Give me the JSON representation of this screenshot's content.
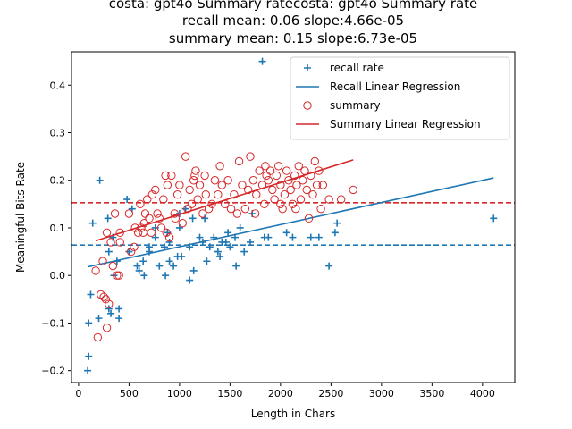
{
  "chart_data": {
    "type": "scatter",
    "title_lines": [
      "costa: gpt4o Summary ratecosta: gpt4o Summary rate",
      "recall mean: 0.06 slope:4.66e-05",
      "summary mean: 0.15 slope:6.73e-05"
    ],
    "xlabel": "Length in Chars",
    "ylabel": "Meaningful Bits Rate",
    "xlim": [
      -70,
      4320
    ],
    "ylim": [
      -0.225,
      0.47
    ],
    "xticks": [
      0,
      500,
      1000,
      1500,
      2000,
      2500,
      3000,
      3500,
      4000
    ],
    "yticks": [
      -0.2,
      -0.1,
      0.0,
      0.1,
      0.2,
      0.3,
      0.4
    ],
    "grid": false,
    "legend": {
      "placement": "top-right",
      "entries": [
        {
          "label": "recall rate",
          "marker": "plus",
          "color": "#1f77b4"
        },
        {
          "label": "Recall Linear Regression",
          "marker": "line",
          "color": "#1f77b4"
        },
        {
          "label": "summary",
          "marker": "circle",
          "color": "#d62728"
        },
        {
          "label": "Summary Linear Regression",
          "marker": "line",
          "color": "#d62728"
        }
      ]
    },
    "colors": {
      "recall": "#1f77b4",
      "summary": "#d62728"
    },
    "series": [
      {
        "name": "recall rate",
        "kind": "scatter",
        "marker": "plus",
        "color": "#1f77b4",
        "points": [
          [
            1820,
            0.45
          ],
          [
            210,
            0.2
          ],
          [
            140,
            0.11
          ],
          [
            290,
            0.12
          ],
          [
            100,
            -0.1
          ],
          [
            120,
            -0.04
          ],
          [
            100,
            -0.17
          ],
          [
            90,
            -0.2
          ],
          [
            200,
            -0.09
          ],
          [
            300,
            -0.07
          ],
          [
            320,
            -0.08
          ],
          [
            400,
            -0.07
          ],
          [
            400,
            -0.09
          ],
          [
            350,
            0.0
          ],
          [
            380,
            0.03
          ],
          [
            300,
            0.05
          ],
          [
            340,
            0.08
          ],
          [
            480,
            0.16
          ],
          [
            530,
            0.14
          ],
          [
            500,
            0.05
          ],
          [
            580,
            0.02
          ],
          [
            600,
            0.01
          ],
          [
            640,
            0.03
          ],
          [
            650,
            0.0
          ],
          [
            700,
            0.06
          ],
          [
            760,
            0.1
          ],
          [
            800,
            0.02
          ],
          [
            850,
            0.06
          ],
          [
            900,
            0.07
          ],
          [
            860,
            0.0
          ],
          [
            900,
            0.03
          ],
          [
            940,
            0.02
          ],
          [
            980,
            0.04
          ],
          [
            1000,
            0.1
          ],
          [
            1020,
            0.04
          ],
          [
            1100,
            0.06
          ],
          [
            1100,
            -0.01
          ],
          [
            1140,
            0.01
          ],
          [
            1200,
            0.08
          ],
          [
            1230,
            0.07
          ],
          [
            1270,
            0.03
          ],
          [
            1300,
            0.06
          ],
          [
            1340,
            0.08
          ],
          [
            1380,
            0.05
          ],
          [
            1400,
            0.04
          ],
          [
            1420,
            0.07
          ],
          [
            1460,
            0.07
          ],
          [
            1550,
            0.08
          ],
          [
            1560,
            0.02
          ],
          [
            1640,
            0.05
          ],
          [
            1700,
            0.07
          ],
          [
            1720,
            0.13
          ],
          [
            1840,
            0.08
          ],
          [
            1880,
            0.08
          ],
          [
            2060,
            0.09
          ],
          [
            2120,
            0.08
          ],
          [
            2300,
            0.08
          ],
          [
            2380,
            0.08
          ],
          [
            2480,
            0.02
          ],
          [
            2540,
            0.09
          ],
          [
            2560,
            0.11
          ],
          [
            4110,
            0.12
          ],
          [
            1000,
            0.13
          ],
          [
            1060,
            0.14
          ],
          [
            1130,
            0.12
          ],
          [
            880,
            0.09
          ],
          [
            760,
            0.08
          ],
          [
            700,
            0.05
          ],
          [
            1250,
            0.12
          ],
          [
            1480,
            0.09
          ],
          [
            1500,
            0.06
          ],
          [
            1600,
            0.1
          ]
        ]
      },
      {
        "name": "Recall Linear Regression",
        "kind": "line",
        "color": "#1f77b4",
        "points": [
          [
            90,
            0.018
          ],
          [
            4110,
            0.205
          ]
        ]
      },
      {
        "name": "summary",
        "kind": "scatter",
        "marker": "circle",
        "color": "#d62728",
        "points": [
          [
            190,
            -0.13
          ],
          [
            220,
            -0.04
          ],
          [
            250,
            -0.045
          ],
          [
            270,
            -0.05
          ],
          [
            300,
            -0.06
          ],
          [
            280,
            -0.11
          ],
          [
            170,
            0.01
          ],
          [
            240,
            0.03
          ],
          [
            280,
            0.09
          ],
          [
            320,
            0.07
          ],
          [
            340,
            0.02
          ],
          [
            360,
            0.13
          ],
          [
            380,
            0.0
          ],
          [
            400,
            0.0
          ],
          [
            410,
            0.07
          ],
          [
            410,
            0.09
          ],
          [
            500,
            0.13
          ],
          [
            520,
            0.05
          ],
          [
            550,
            0.06
          ],
          [
            560,
            0.1
          ],
          [
            590,
            0.09
          ],
          [
            610,
            0.15
          ],
          [
            620,
            0.1
          ],
          [
            640,
            0.09
          ],
          [
            650,
            0.11
          ],
          [
            680,
            0.16
          ],
          [
            700,
            0.12
          ],
          [
            730,
            0.17
          ],
          [
            760,
            0.18
          ],
          [
            780,
            0.13
          ],
          [
            800,
            0.12
          ],
          [
            820,
            0.1
          ],
          [
            840,
            0.16
          ],
          [
            860,
            0.21
          ],
          [
            880,
            0.19
          ],
          [
            900,
            0.08
          ],
          [
            920,
            0.21
          ],
          [
            950,
            0.13
          ],
          [
            980,
            0.17
          ],
          [
            1000,
            0.19
          ],
          [
            1030,
            0.11
          ],
          [
            1060,
            0.25
          ],
          [
            1080,
            0.14
          ],
          [
            1100,
            0.18
          ],
          [
            1120,
            0.15
          ],
          [
            1140,
            0.2
          ],
          [
            1160,
            0.22
          ],
          [
            1180,
            0.16
          ],
          [
            1200,
            0.19
          ],
          [
            1230,
            0.13
          ],
          [
            1260,
            0.17
          ],
          [
            1290,
            0.14
          ],
          [
            1320,
            0.15
          ],
          [
            1350,
            0.2
          ],
          [
            1380,
            0.17
          ],
          [
            1400,
            0.23
          ],
          [
            1420,
            0.19
          ],
          [
            1450,
            0.15
          ],
          [
            1480,
            0.2
          ],
          [
            1510,
            0.14
          ],
          [
            1540,
            0.17
          ],
          [
            1570,
            0.13
          ],
          [
            1590,
            0.24
          ],
          [
            1620,
            0.19
          ],
          [
            1650,
            0.14
          ],
          [
            1680,
            0.18
          ],
          [
            1700,
            0.25
          ],
          [
            1730,
            0.2
          ],
          [
            1760,
            0.17
          ],
          [
            1790,
            0.22
          ],
          [
            1820,
            0.19
          ],
          [
            1840,
            0.15
          ],
          [
            1860,
            0.21
          ],
          [
            1880,
            0.2
          ],
          [
            1900,
            0.22
          ],
          [
            1920,
            0.18
          ],
          [
            1940,
            0.16
          ],
          [
            1960,
            0.21
          ],
          [
            1980,
            0.23
          ],
          [
            2000,
            0.19
          ],
          [
            2020,
            0.14
          ],
          [
            2040,
            0.17
          ],
          [
            2060,
            0.22
          ],
          [
            2080,
            0.2
          ],
          [
            2100,
            0.18
          ],
          [
            2120,
            0.15
          ],
          [
            2140,
            0.21
          ],
          [
            2160,
            0.19
          ],
          [
            2180,
            0.23
          ],
          [
            2200,
            0.16
          ],
          [
            2220,
            0.2
          ],
          [
            2240,
            0.22
          ],
          [
            2260,
            0.18
          ],
          [
            2280,
            0.12
          ],
          [
            2300,
            0.21
          ],
          [
            2320,
            0.17
          ],
          [
            2340,
            0.24
          ],
          [
            2360,
            0.19
          ],
          [
            2380,
            0.22
          ],
          [
            2400,
            0.14
          ],
          [
            2420,
            0.19
          ],
          [
            2480,
            0.16
          ],
          [
            2600,
            0.16
          ],
          [
            2720,
            0.18
          ],
          [
            1250,
            0.21
          ],
          [
            1150,
            0.21
          ],
          [
            960,
            0.12
          ],
          [
            870,
            0.09
          ],
          [
            720,
            0.09
          ],
          [
            660,
            0.13
          ],
          [
            1750,
            0.13
          ],
          [
            2000,
            0.15
          ],
          [
            2150,
            0.14
          ],
          [
            1850,
            0.23
          ]
        ]
      },
      {
        "name": "Summary Linear Regression",
        "kind": "line",
        "color": "#d62728",
        "points": [
          [
            170,
            0.073
          ],
          [
            2720,
            0.243
          ]
        ]
      },
      {
        "name": "recall mean",
        "kind": "hline",
        "style": "dashed",
        "color": "#1f77b4",
        "y": 0.064
      },
      {
        "name": "summary mean",
        "kind": "hline",
        "style": "dashed",
        "color": "#d62728",
        "y": 0.153
      }
    ]
  }
}
